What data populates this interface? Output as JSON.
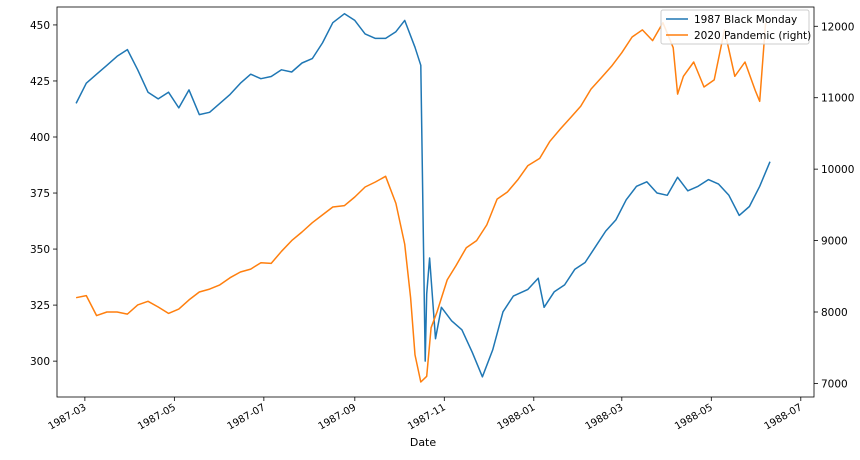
{
  "chart_data": {
    "type": "line",
    "title": "",
    "xlabel": "Date",
    "ylabel": "",
    "ylabel_right": "",
    "x_ticks": [
      "1987-03",
      "1987-05",
      "1987-07",
      "1987-09",
      "1987-11",
      "1988-01",
      "1988-03",
      "1988-05",
      "1988-07"
    ],
    "y_left_ticks": [
      300,
      325,
      350,
      375,
      400,
      425,
      450
    ],
    "y_right_ticks": [
      7000,
      8000,
      9000,
      10000,
      11000,
      12000
    ],
    "ylim_left": [
      284,
      458
    ],
    "ylim_right": [
      6810,
      12270
    ],
    "xlim": [
      "1987-02-10",
      "1988-07-10"
    ],
    "grid": false,
    "legend": "top-right",
    "legend_entries": [
      "1987 Black Monday",
      "2020 Pandemic (right)"
    ],
    "colors": {
      "series1": "#1f77b4",
      "series2": "#ff7f0e"
    },
    "series": [
      {
        "name": "1987 Black Monday",
        "axis": "left",
        "x": [
          "1987-02-23",
          "1987-03-02",
          "1987-03-09",
          "1987-03-16",
          "1987-03-23",
          "1987-03-30",
          "1987-04-06",
          "1987-04-13",
          "1987-04-20",
          "1987-04-27",
          "1987-05-04",
          "1987-05-11",
          "1987-05-18",
          "1987-05-25",
          "1987-06-01",
          "1987-06-08",
          "1987-06-15",
          "1987-06-22",
          "1987-06-29",
          "1987-07-06",
          "1987-07-13",
          "1987-07-20",
          "1987-07-27",
          "1987-08-03",
          "1987-08-10",
          "1987-08-17",
          "1987-08-25",
          "1987-09-01",
          "1987-09-08",
          "1987-09-15",
          "1987-09-22",
          "1987-09-29",
          "1987-10-05",
          "1987-10-12",
          "1987-10-16",
          "1987-10-19",
          "1987-10-20",
          "1987-10-22",
          "1987-10-26",
          "1987-10-30",
          "1987-11-06",
          "1987-11-13",
          "1987-11-20",
          "1987-11-27",
          "1987-12-04",
          "1987-12-11",
          "1987-12-18",
          "1987-12-28",
          "1988-01-04",
          "1988-01-08",
          "1988-01-15",
          "1988-01-22",
          "1988-01-29",
          "1988-02-05",
          "1988-02-12",
          "1988-02-19",
          "1988-02-26",
          "1988-03-04",
          "1988-03-11",
          "1988-03-18",
          "1988-03-25",
          "1988-04-01",
          "1988-04-08",
          "1988-04-15",
          "1988-04-22",
          "1988-04-29",
          "1988-05-06",
          "1988-05-13",
          "1988-05-20",
          "1988-05-27",
          "1988-06-03",
          "1988-06-10"
        ],
        "values": [
          415,
          424,
          428,
          432,
          436,
          439,
          430,
          420,
          417,
          420,
          413,
          421,
          410,
          411,
          415,
          419,
          424,
          428,
          426,
          427,
          430,
          429,
          433,
          435,
          442,
          451,
          455,
          452,
          446,
          444,
          444,
          447,
          452,
          440,
          432,
          300,
          330,
          346,
          310,
          324,
          318,
          314,
          304,
          293,
          305,
          322,
          329,
          332,
          337,
          324,
          331,
          334,
          341,
          344,
          351,
          358,
          363,
          372,
          378,
          380,
          375,
          374,
          382,
          376,
          378,
          381,
          379,
          374,
          365,
          369,
          378,
          389
        ]
      },
      {
        "name": "2020 Pandemic (right)",
        "axis": "right",
        "x": [
          "1987-02-23",
          "1987-03-02",
          "1987-03-09",
          "1987-03-16",
          "1987-03-23",
          "1987-03-30",
          "1987-04-06",
          "1987-04-13",
          "1987-04-20",
          "1987-04-27",
          "1987-05-04",
          "1987-05-11",
          "1987-05-18",
          "1987-05-25",
          "1987-06-01",
          "1987-06-08",
          "1987-06-15",
          "1987-06-22",
          "1987-06-29",
          "1987-07-06",
          "1987-07-13",
          "1987-07-20",
          "1987-07-27",
          "1987-08-03",
          "1987-08-10",
          "1987-08-17",
          "1987-08-25",
          "1987-09-01",
          "1987-09-08",
          "1987-09-15",
          "1987-09-22",
          "1987-09-29",
          "1987-10-05",
          "1987-10-09",
          "1987-10-12",
          "1987-10-16",
          "1987-10-20",
          "1987-10-23",
          "1987-10-27",
          "1987-11-03",
          "1987-11-09",
          "1987-11-16",
          "1987-11-23",
          "1987-11-30",
          "1987-12-07",
          "1987-12-14",
          "1987-12-21",
          "1987-12-28",
          "1988-01-05",
          "1988-01-12",
          "1988-01-19",
          "1988-01-26",
          "1988-02-02",
          "1988-02-09",
          "1988-02-16",
          "1988-02-23",
          "1988-03-01",
          "1988-03-08",
          "1988-03-15",
          "1988-03-22",
          "1988-03-29",
          "1988-04-05",
          "1988-04-08",
          "1988-04-12",
          "1988-04-19",
          "1988-04-26",
          "1988-05-03",
          "1988-05-10",
          "1988-05-17",
          "1988-05-24",
          "1988-05-31",
          "1988-06-03",
          "1988-06-07"
        ],
        "values": [
          8200,
          8230,
          7950,
          8000,
          8000,
          7970,
          8100,
          8150,
          8070,
          7980,
          8040,
          8170,
          8280,
          8320,
          8380,
          8480,
          8560,
          8600,
          8690,
          8680,
          8850,
          9000,
          9120,
          9250,
          9360,
          9470,
          9490,
          9610,
          9750,
          9820,
          9900,
          9520,
          8950,
          8200,
          7400,
          7020,
          7100,
          7780,
          8000,
          8450,
          8650,
          8900,
          9000,
          9220,
          9580,
          9680,
          9850,
          10050,
          10150,
          10390,
          10560,
          10720,
          10880,
          11120,
          11280,
          11440,
          11630,
          11850,
          11950,
          11800,
          12050,
          11700,
          11050,
          11300,
          11500,
          11150,
          11250,
          11950,
          11300,
          11500,
          11100,
          10950,
          12050
        ]
      }
    ]
  }
}
